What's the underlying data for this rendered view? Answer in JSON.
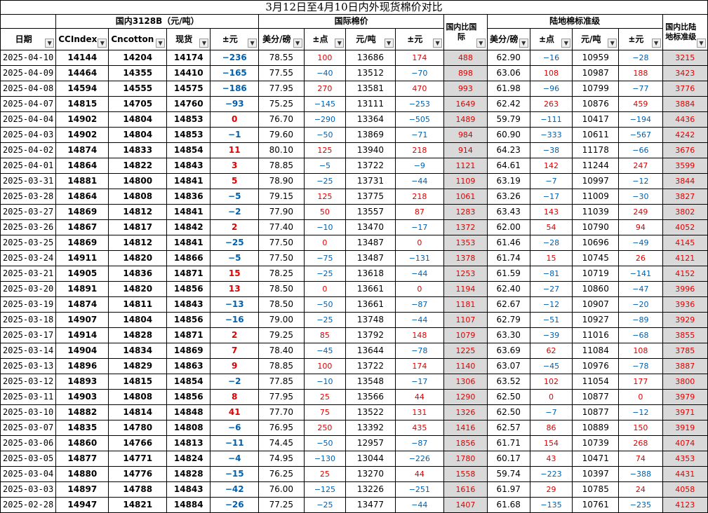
{
  "title": "3月12日至4月10日内外现货棉价对比",
  "groups": {
    "domestic": "国内3128B（元/吨）",
    "intl": "国际棉价",
    "cmp_intl": "国内比国际",
    "land": "陆地棉标准级",
    "cmp_land": "国内比陆地标准级"
  },
  "headers": [
    "日期",
    "CCIndex",
    "Cncotton",
    "现货",
    "±元",
    "美分/磅",
    "±点",
    "元/吨",
    "±元",
    "美分/磅",
    "±点",
    "元/吨",
    "±元"
  ],
  "rows": [
    [
      "2025-04-10",
      "14144",
      "14204",
      "14174",
      "-236",
      "78.55",
      "100",
      "13686",
      "174",
      "488",
      "62.90",
      "-16",
      "10959",
      "-28",
      "3215"
    ],
    [
      "2025-04-09",
      "14464",
      "14355",
      "14410",
      "-165",
      "77.55",
      "-40",
      "13512",
      "-70",
      "898",
      "63.06",
      "108",
      "10987",
      "188",
      "3423"
    ],
    [
      "2025-04-08",
      "14594",
      "14555",
      "14575",
      "-186",
      "77.95",
      "270",
      "13581",
      "470",
      "993",
      "61.98",
      "-96",
      "10799",
      "-77",
      "3776"
    ],
    [
      "2025-04-07",
      "14815",
      "14705",
      "14760",
      "-93",
      "75.25",
      "-145",
      "13111",
      "-253",
      "1649",
      "62.42",
      "263",
      "10876",
      "459",
      "3884"
    ],
    [
      "2025-04-04",
      "14902",
      "14804",
      "14853",
      "0",
      "76.70",
      "-290",
      "13364",
      "-505",
      "1489",
      "59.79",
      "-111",
      "10417",
      "-194",
      "4436"
    ],
    [
      "2025-04-03",
      "14902",
      "14804",
      "14853",
      "-1",
      "79.60",
      "-50",
      "13869",
      "-71",
      "984",
      "60.90",
      "-333",
      "10611",
      "-567",
      "4242"
    ],
    [
      "2025-04-02",
      "14874",
      "14833",
      "14854",
      "11",
      "80.10",
      "125",
      "13940",
      "218",
      "914",
      "64.23",
      "-38",
      "11178",
      "-66",
      "3676"
    ],
    [
      "2025-04-01",
      "14864",
      "14822",
      "14843",
      "3",
      "78.85",
      "-5",
      "13722",
      "-9",
      "1121",
      "64.61",
      "142",
      "11244",
      "247",
      "3599"
    ],
    [
      "2025-03-31",
      "14881",
      "14800",
      "14841",
      "5",
      "78.90",
      "-25",
      "13731",
      "-44",
      "1109",
      "63.19",
      "-7",
      "10997",
      "-12",
      "3844"
    ],
    [
      "2025-03-28",
      "14864",
      "14808",
      "14836",
      "-5",
      "79.15",
      "125",
      "13775",
      "218",
      "1061",
      "63.26",
      "-17",
      "11009",
      "-30",
      "3827"
    ],
    [
      "2025-03-27",
      "14869",
      "14812",
      "14841",
      "-2",
      "77.90",
      "50",
      "13557",
      "87",
      "1283",
      "63.43",
      "143",
      "11039",
      "249",
      "3802"
    ],
    [
      "2025-03-26",
      "14867",
      "14817",
      "14842",
      "2",
      "77.40",
      "-10",
      "13470",
      "-17",
      "1372",
      "62.00",
      "54",
      "10790",
      "94",
      "4052"
    ],
    [
      "2025-03-25",
      "14869",
      "14812",
      "14841",
      "-25",
      "77.50",
      "0",
      "13487",
      "0",
      "1353",
      "61.46",
      "-28",
      "10696",
      "-49",
      "4145"
    ],
    [
      "2025-03-24",
      "14911",
      "14820",
      "14866",
      "-5",
      "77.50",
      "-75",
      "13487",
      "-131",
      "1378",
      "61.74",
      "15",
      "10745",
      "26",
      "4121"
    ],
    [
      "2025-03-21",
      "14905",
      "14836",
      "14871",
      "15",
      "78.25",
      "-25",
      "13618",
      "-44",
      "1253",
      "61.59",
      "-81",
      "10719",
      "-141",
      "4152"
    ],
    [
      "2025-03-20",
      "14891",
      "14820",
      "14856",
      "13",
      "78.50",
      "0",
      "13661",
      "0",
      "1194",
      "62.40",
      "-27",
      "10860",
      "-47",
      "3996"
    ],
    [
      "2025-03-19",
      "14874",
      "14811",
      "14843",
      "-13",
      "78.50",
      "-50",
      "13661",
      "-87",
      "1181",
      "62.67",
      "-12",
      "10907",
      "-20",
      "3936"
    ],
    [
      "2025-03-18",
      "14907",
      "14804",
      "14856",
      "-16",
      "79.00",
      "-25",
      "13748",
      "-44",
      "1107",
      "62.79",
      "-51",
      "10927",
      "-89",
      "3929"
    ],
    [
      "2025-03-17",
      "14914",
      "14828",
      "14871",
      "2",
      "79.25",
      "85",
      "13792",
      "148",
      "1079",
      "63.30",
      "-39",
      "11016",
      "-68",
      "3855"
    ],
    [
      "2025-03-14",
      "14904",
      "14834",
      "14869",
      "7",
      "78.40",
      "-45",
      "13644",
      "-78",
      "1225",
      "63.69",
      "62",
      "11084",
      "108",
      "3785"
    ],
    [
      "2025-03-13",
      "14896",
      "14829",
      "14863",
      "9",
      "78.85",
      "100",
      "13722",
      "174",
      "1140",
      "63.07",
      "-45",
      "10976",
      "-78",
      "3887"
    ],
    [
      "2025-03-12",
      "14893",
      "14815",
      "14854",
      "-2",
      "77.85",
      "-10",
      "13548",
      "-17",
      "1306",
      "63.52",
      "102",
      "11054",
      "177",
      "3800"
    ],
    [
      "2025-03-11",
      "14903",
      "14808",
      "14856",
      "8",
      "77.95",
      "25",
      "13566",
      "44",
      "1290",
      "62.50",
      "0",
      "10877",
      "0",
      "3979"
    ],
    [
      "2025-03-10",
      "14882",
      "14814",
      "14848",
      "41",
      "77.70",
      "75",
      "13522",
      "131",
      "1326",
      "62.50",
      "-7",
      "10877",
      "-12",
      "3971"
    ],
    [
      "2025-03-07",
      "14835",
      "14780",
      "14808",
      "-6",
      "76.95",
      "250",
      "13392",
      "435",
      "1416",
      "62.57",
      "86",
      "10889",
      "150",
      "3919"
    ],
    [
      "2025-03-06",
      "14860",
      "14766",
      "14813",
      "-11",
      "74.45",
      "-50",
      "12957",
      "-87",
      "1856",
      "61.71",
      "154",
      "10739",
      "268",
      "4074"
    ],
    [
      "2025-03-05",
      "14877",
      "14771",
      "14824",
      "-4",
      "74.95",
      "-130",
      "13044",
      "-226",
      "1780",
      "60.17",
      "43",
      "10471",
      "74",
      "4353"
    ],
    [
      "2025-03-04",
      "14880",
      "14776",
      "14828",
      "-15",
      "76.25",
      "25",
      "13270",
      "44",
      "1558",
      "59.74",
      "-223",
      "10397",
      "-388",
      "4431"
    ],
    [
      "2025-03-03",
      "14897",
      "14788",
      "14843",
      "-42",
      "76.00",
      "-125",
      "13226",
      "-251",
      "1616",
      "61.97",
      "29",
      "10785",
      "24",
      "4058"
    ],
    [
      "2025-02-28",
      "14947",
      "14821",
      "14884",
      "-26",
      "77.25",
      "-25",
      "13477",
      "-44",
      "1407",
      "61.68",
      "-135",
      "10761",
      "-235",
      "4123"
    ]
  ],
  "colors": {
    "positive": "#e00000",
    "negative": "#0060b0",
    "compare_bg": "#d9d9d9"
  },
  "icons": {
    "filter": "filter-dropdown-icon"
  }
}
